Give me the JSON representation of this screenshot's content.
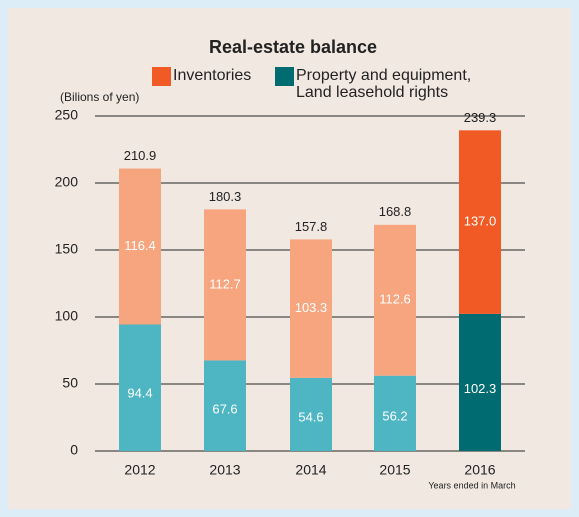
{
  "chart_data": {
    "type": "stacked_bar",
    "title": "Real-estate balance",
    "y_axis_label": "(Bilions of yen)",
    "x_axis_note": "Years ended in March",
    "categories": [
      "2012",
      "2013",
      "2014",
      "2015",
      "2016"
    ],
    "series": [
      {
        "name": "Property and equipment, Land leasehold rights",
        "color": "#006b70",
        "colors": [
          "#4db6c2",
          "#4db6c2",
          "#4db6c2",
          "#4db6c2",
          "#006b70"
        ],
        "values": [
          94.4,
          67.6,
          54.6,
          56.2,
          102.3
        ]
      },
      {
        "name": "Inventories",
        "color": "#f15a24",
        "colors": [
          "#f7a57e",
          "#f7a57e",
          "#f7a57e",
          "#f7a57e",
          "#f15a24"
        ],
        "values": [
          116.4,
          112.7,
          103.3,
          112.6,
          137.0
        ],
        "value_labels": [
          "116.4",
          "112.7",
          "103.3",
          "112.6",
          "137.0"
        ]
      }
    ],
    "totals": [
      210.9,
      180.3,
      157.8,
      168.8,
      239.3
    ],
    "ylim": [
      0,
      250
    ],
    "yticks": [
      0,
      50,
      100,
      150,
      200,
      250
    ],
    "grid": true
  }
}
